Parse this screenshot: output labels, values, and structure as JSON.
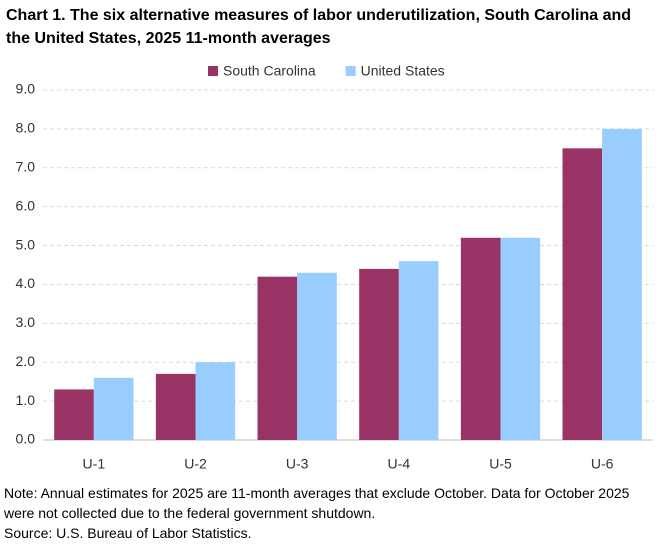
{
  "chart_data": {
    "type": "bar",
    "title": "Chart 1. The six alternative measures of labor underutilization, South Carolina and the United States, 2025 11-month averages",
    "categories": [
      "U-1",
      "U-2",
      "U-3",
      "U-4",
      "U-5",
      "U-6"
    ],
    "series": [
      {
        "name": "South Carolina",
        "color": "#993366",
        "values": [
          1.3,
          1.7,
          4.2,
          4.4,
          5.2,
          7.5
        ]
      },
      {
        "name": "United States",
        "color": "#99ccff",
        "values": [
          1.6,
          2.0,
          4.3,
          4.6,
          5.2,
          8.0
        ]
      }
    ],
    "ylim": [
      0,
      9
    ],
    "yticks": [
      {
        "value": 0,
        "label": "0.0"
      },
      {
        "value": 1,
        "label": "1.0"
      },
      {
        "value": 2,
        "label": "2.0"
      },
      {
        "value": 3,
        "label": "3.0"
      },
      {
        "value": 4,
        "label": "4.0"
      },
      {
        "value": 5,
        "label": "5.0"
      },
      {
        "value": 6,
        "label": "6.0"
      },
      {
        "value": 7,
        "label": "7.0"
      },
      {
        "value": 8,
        "label": "8.0"
      },
      {
        "value": 9,
        "label": "9.0"
      }
    ],
    "grid": true,
    "legend": "top",
    "note": "Note: Annual estimates for 2025 are 11-month averages that exclude October. Data for October 2025 were not collected due to the federal government shutdown.",
    "source": "Source: U.S. Bureau of Labor Statistics."
  }
}
